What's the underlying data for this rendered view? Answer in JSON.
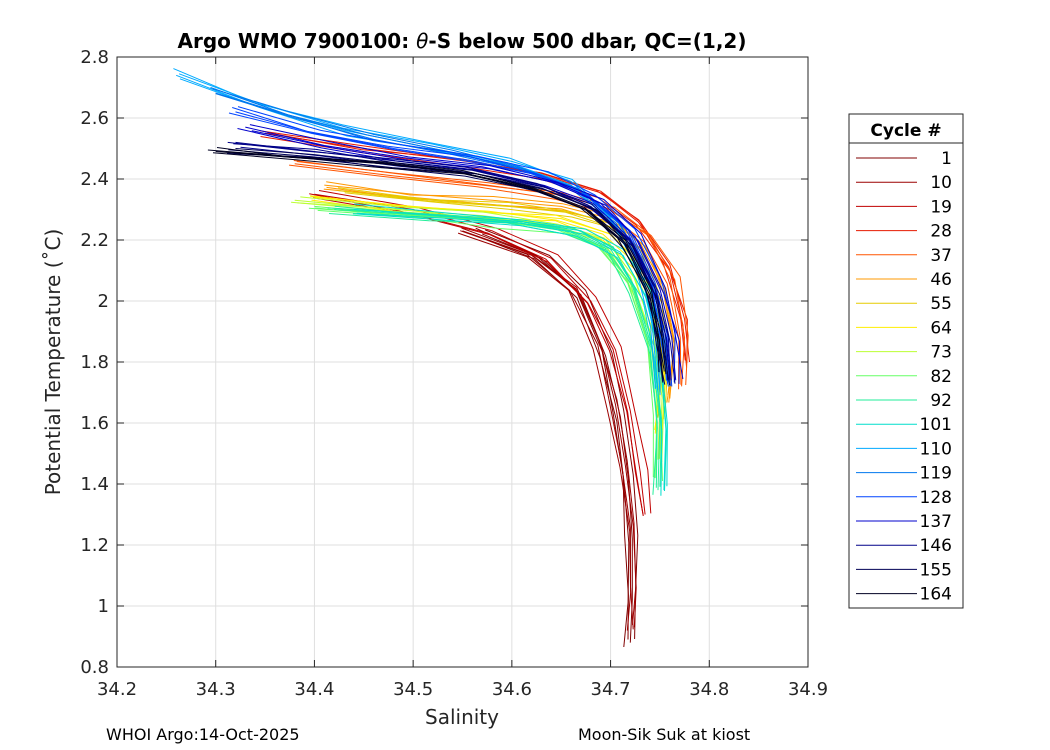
{
  "chart_data": {
    "type": "line",
    "title": "Argo WMO 7900100: θ-S below 500 dbar,  QC=(1,2)",
    "title_parts": {
      "pre": "Argo WMO 7900100: ",
      "symbol": "θ",
      "post": "-S below 500 dbar,  QC=(1,2)"
    },
    "xlabel": "Salinity",
    "ylabel": "Potential Temperature (˚C)",
    "xlim": [
      34.2,
      34.9
    ],
    "ylim": [
      0.8,
      2.8
    ],
    "xticks": [
      34.2,
      34.3,
      34.4,
      34.5,
      34.6,
      34.7,
      34.8,
      34.9
    ],
    "xtick_labels": [
      "34.2",
      "34.3",
      "34.4",
      "34.5",
      "34.6",
      "34.7",
      "34.8",
      "34.9"
    ],
    "yticks": [
      0.8,
      1.0,
      1.2,
      1.4,
      1.6,
      1.8,
      2.0,
      2.2,
      2.4,
      2.6,
      2.8
    ],
    "ytick_labels": [
      "0.8",
      "1",
      "1.2",
      "1.4",
      "1.6",
      "1.8",
      "2",
      "2.2",
      "2.4",
      "2.6",
      "2.8"
    ],
    "grid": true,
    "legend": {
      "title": "Cycle #",
      "placement": "outside-right",
      "entries": [
        {
          "label": "1",
          "color": "#800000"
        },
        {
          "label": "10",
          "color": "#9c0000"
        },
        {
          "label": "19",
          "color": "#c00000"
        },
        {
          "label": "28",
          "color": "#e61a00"
        },
        {
          "label": "37",
          "color": "#ff5500"
        },
        {
          "label": "46",
          "color": "#ff9900"
        },
        {
          "label": "55",
          "color": "#e6cc00"
        },
        {
          "label": "64",
          "color": "#ffee00"
        },
        {
          "label": "73",
          "color": "#bbff33"
        },
        {
          "label": "82",
          "color": "#66ff66"
        },
        {
          "label": "92",
          "color": "#22ee99"
        },
        {
          "label": "101",
          "color": "#00ddcc"
        },
        {
          "label": "110",
          "color": "#00aaff"
        },
        {
          "label": "119",
          "color": "#0077ee"
        },
        {
          "label": "128",
          "color": "#0044ff"
        },
        {
          "label": "137",
          "color": "#0000cc"
        },
        {
          "label": "146",
          "color": "#000088"
        },
        {
          "label": "155",
          "color": "#000055"
        },
        {
          "label": "164",
          "color": "#000022"
        }
      ]
    },
    "series": [
      {
        "name": "1",
        "color": "#800000",
        "x": [
          34.57,
          34.63,
          34.67,
          34.695,
          34.71,
          34.718,
          34.722,
          34.722,
          34.72
        ],
        "y": [
          2.22,
          2.14,
          2.02,
          1.82,
          1.62,
          1.42,
          1.22,
          1.02,
          0.88
        ]
      },
      {
        "name": "10",
        "color": "#9c0000",
        "x": [
          34.55,
          34.62,
          34.665,
          34.69,
          34.705,
          34.715,
          34.723,
          34.726,
          34.724
        ],
        "y": [
          2.23,
          2.15,
          2.04,
          1.86,
          1.66,
          1.46,
          1.26,
          1.06,
          0.93
        ]
      },
      {
        "name": "19",
        "color": "#c00000",
        "x": [
          34.4,
          34.5,
          34.58,
          34.64,
          34.68,
          34.705,
          34.72,
          34.73,
          34.735
        ],
        "y": [
          2.35,
          2.3,
          2.23,
          2.14,
          2.0,
          1.84,
          1.64,
          1.44,
          1.3
        ]
      },
      {
        "name": "28",
        "color": "#e61a00",
        "x": [
          34.35,
          34.45,
          34.55,
          34.63,
          34.69,
          34.73,
          34.76,
          34.775,
          34.78
        ],
        "y": [
          2.55,
          2.5,
          2.46,
          2.42,
          2.36,
          2.26,
          2.12,
          1.94,
          1.8
        ]
      },
      {
        "name": "37",
        "color": "#ff5500",
        "x": [
          34.38,
          34.48,
          34.57,
          34.65,
          34.7,
          34.74,
          34.765,
          34.775,
          34.772
        ],
        "y": [
          2.45,
          2.41,
          2.38,
          2.35,
          2.3,
          2.21,
          2.07,
          1.88,
          1.72
        ]
      },
      {
        "name": "46",
        "color": "#ff9900",
        "x": [
          34.41,
          34.5,
          34.58,
          34.65,
          34.7,
          34.735,
          34.755,
          34.765,
          34.76
        ],
        "y": [
          2.38,
          2.35,
          2.33,
          2.31,
          2.27,
          2.18,
          2.04,
          1.86,
          1.68
        ]
      },
      {
        "name": "55",
        "color": "#e6cc00",
        "x": [
          34.43,
          34.52,
          34.6,
          34.66,
          34.705,
          34.735,
          34.752,
          34.758,
          34.755
        ],
        "y": [
          2.36,
          2.33,
          2.31,
          2.29,
          2.25,
          2.15,
          2.0,
          1.8,
          1.62
        ]
      },
      {
        "name": "64",
        "color": "#ffee00",
        "x": [
          34.4,
          34.5,
          34.58,
          34.65,
          34.7,
          34.73,
          34.748,
          34.756,
          34.752
        ],
        "y": [
          2.34,
          2.31,
          2.29,
          2.27,
          2.22,
          2.12,
          1.96,
          1.76,
          1.58
        ]
      },
      {
        "name": "73",
        "color": "#bbff33",
        "x": [
          34.38,
          34.48,
          34.57,
          34.64,
          34.69,
          34.72,
          34.74,
          34.75,
          34.748
        ],
        "y": [
          2.33,
          2.3,
          2.28,
          2.25,
          2.2,
          2.08,
          1.9,
          1.68,
          1.48
        ]
      },
      {
        "name": "82",
        "color": "#66ff66",
        "x": [
          34.4,
          34.5,
          34.58,
          34.645,
          34.69,
          34.72,
          34.738,
          34.747,
          34.745
        ],
        "y": [
          2.31,
          2.28,
          2.26,
          2.24,
          2.18,
          2.06,
          1.86,
          1.62,
          1.42
        ]
      },
      {
        "name": "92",
        "color": "#22ee99",
        "x": [
          34.42,
          34.52,
          34.6,
          34.66,
          34.7,
          34.725,
          34.742,
          34.75,
          34.748
        ],
        "y": [
          2.3,
          2.28,
          2.26,
          2.23,
          2.17,
          2.04,
          1.84,
          1.6,
          1.38
        ]
      },
      {
        "name": "101",
        "color": "#00ddcc",
        "x": [
          34.44,
          34.53,
          34.61,
          34.67,
          34.71,
          34.735,
          34.75,
          34.756,
          34.754
        ],
        "y": [
          2.3,
          2.28,
          2.26,
          2.23,
          2.16,
          2.02,
          1.82,
          1.58,
          1.38
        ]
      },
      {
        "name": "110",
        "color": "#00aaff",
        "x": [
          34.26,
          34.34,
          34.43,
          34.52,
          34.6,
          34.66,
          34.7,
          34.73,
          34.745,
          34.75
        ],
        "y": [
          2.74,
          2.64,
          2.56,
          2.5,
          2.45,
          2.38,
          2.27,
          2.1,
          1.9,
          1.7
        ]
      },
      {
        "name": "119",
        "color": "#0077ee",
        "x": [
          34.3,
          34.38,
          34.46,
          34.54,
          34.61,
          34.67,
          34.71,
          34.74,
          34.755,
          34.76
        ],
        "y": [
          2.68,
          2.6,
          2.53,
          2.48,
          2.43,
          2.36,
          2.25,
          2.08,
          1.9,
          1.72
        ]
      },
      {
        "name": "128",
        "color": "#0044ff",
        "x": [
          34.32,
          34.4,
          34.48,
          34.56,
          34.63,
          34.68,
          34.72,
          34.745,
          34.758,
          34.762
        ],
        "y": [
          2.62,
          2.55,
          2.5,
          2.46,
          2.41,
          2.34,
          2.23,
          2.06,
          1.88,
          1.72
        ]
      },
      {
        "name": "137",
        "color": "#0000cc",
        "x": [
          34.33,
          34.41,
          34.49,
          34.57,
          34.64,
          34.69,
          34.725,
          34.75,
          34.762,
          34.766
        ],
        "y": [
          2.57,
          2.51,
          2.47,
          2.44,
          2.39,
          2.32,
          2.21,
          2.04,
          1.88,
          1.74
        ]
      },
      {
        "name": "146",
        "color": "#000088",
        "x": [
          34.32,
          34.4,
          34.48,
          34.56,
          34.63,
          34.68,
          34.72,
          34.745,
          34.756,
          34.76
        ],
        "y": [
          2.52,
          2.49,
          2.46,
          2.43,
          2.38,
          2.31,
          2.2,
          2.04,
          1.88,
          1.74
        ]
      },
      {
        "name": "155",
        "color": "#000055",
        "x": [
          34.32,
          34.4,
          34.48,
          34.56,
          34.63,
          34.685,
          34.722,
          34.745,
          34.755,
          34.758
        ],
        "y": [
          2.5,
          2.48,
          2.45,
          2.42,
          2.37,
          2.3,
          2.18,
          2.02,
          1.86,
          1.74
        ]
      },
      {
        "name": "164",
        "color": "#000022",
        "x": [
          34.3,
          34.38,
          34.47,
          34.55,
          34.62,
          34.675,
          34.715,
          34.74,
          34.752,
          34.756
        ],
        "y": [
          2.49,
          2.47,
          2.45,
          2.42,
          2.37,
          2.3,
          2.19,
          2.03,
          1.88,
          1.76
        ]
      }
    ]
  },
  "footer": {
    "left": "WHOI Argo:14-Oct-2025",
    "right": "Moon-Sik Suk at kiost"
  }
}
